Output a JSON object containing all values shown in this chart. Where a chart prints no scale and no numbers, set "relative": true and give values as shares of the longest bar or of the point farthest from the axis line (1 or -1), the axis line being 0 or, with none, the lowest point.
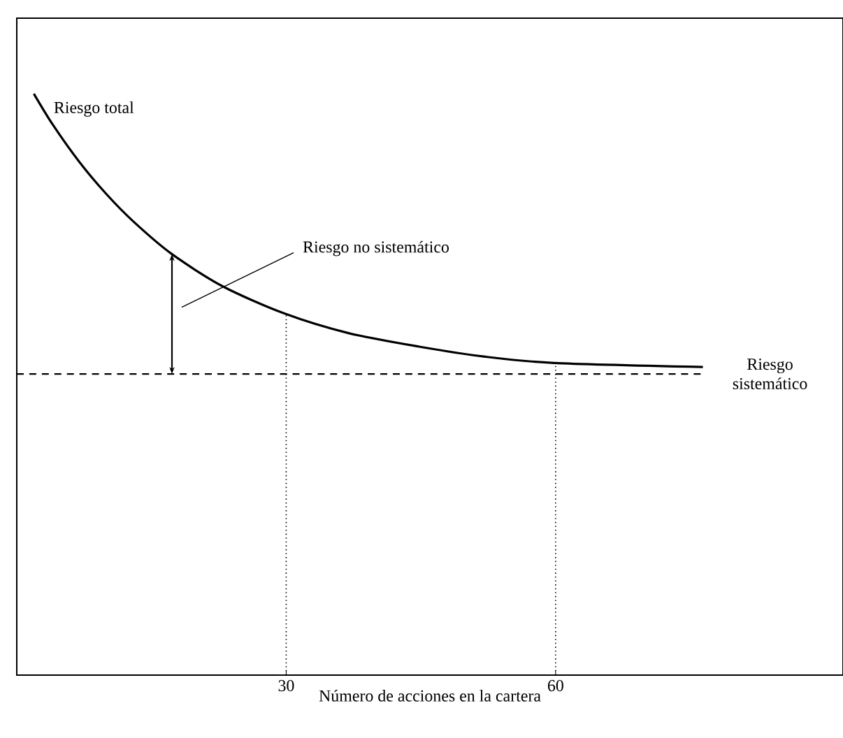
{
  "chart_data": {
    "type": "line",
    "relative": true,
    "xlabel": "Número de acciones en la cartera",
    "x": [
      1.9,
      4.0,
      7.0,
      10.0,
      13.0,
      17.2,
      22.9,
      29.8,
      37.0,
      44.8,
      52.0,
      59.8,
      76.4
    ],
    "series": [
      {
        "color": "#000000",
        "values": [
          1.0,
          0.947,
          0.882,
          0.827,
          0.78,
          0.725,
          0.669,
          0.622,
          0.588,
          0.565,
          0.548,
          0.537,
          0.53
        ]
      }
    ],
    "xlim": [
      0,
      92
    ],
    "xticks": [
      30,
      60
    ],
    "ref_lines": [
      {
        "axis": "y",
        "value": 0.518,
        "label": "Riesgo sistemático",
        "line_style": "dashed"
      },
      {
        "axis": "x",
        "value": 30,
        "line_style": "dotted"
      },
      {
        "axis": "x",
        "value": 60,
        "line_style": "dotted"
      }
    ],
    "annotations": [
      {
        "text": "Riesgo total",
        "x": 1.7,
        "y": 1.0
      },
      "Riesgo no sistemático"
    ],
    "grid": false,
    "marker": "none",
    "line_style": "solid"
  }
}
